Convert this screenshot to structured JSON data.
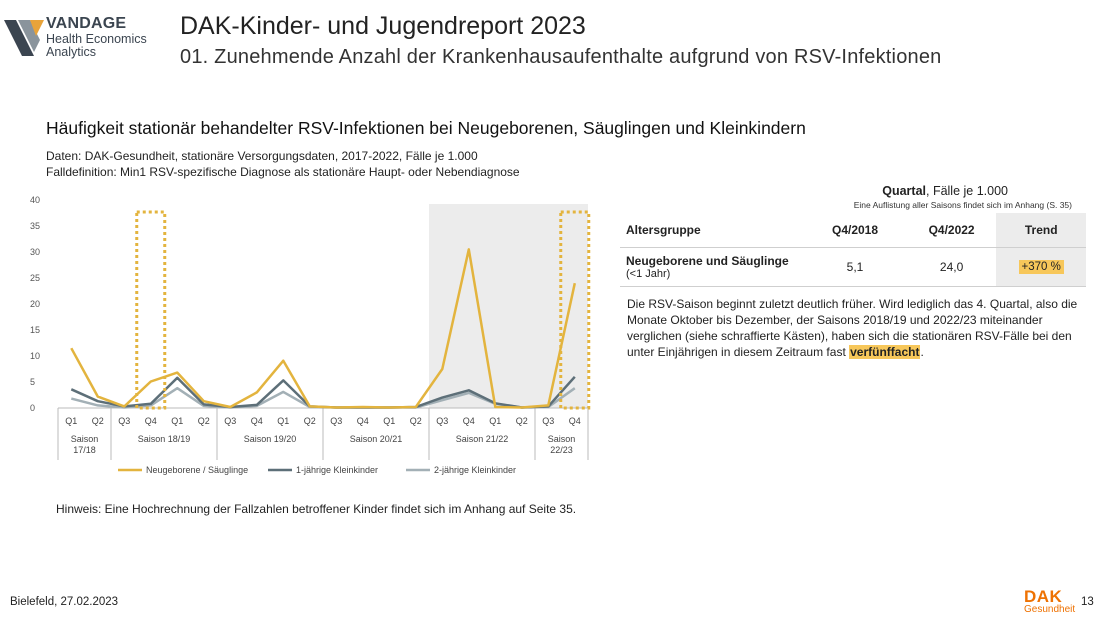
{
  "logo": {
    "brand": "VANDAGE",
    "line1": "Health Economics",
    "line2": "Analytics"
  },
  "header": {
    "title": "DAK-Kinder- und Jugendreport 2023",
    "subtitle": "01. Zunehmende Anzahl der Krankenhausaufenthalte aufgrund von RSV-Infektionen"
  },
  "section": {
    "title": "Häufigkeit stationär behandelter RSV-Infektionen bei Neugeborenen, Säuglingen und Kleinkindern",
    "source": "Daten: DAK-Gesundheit, stationäre Versorgungsdaten, 2017-2022, Fälle je 1.000",
    "definition": "Falldefinition: Min1 RSV-spezifische Diagnose als stationäre Haupt- oder Nebendiagnose"
  },
  "colors": {
    "series_newborn": "#e3b43e",
    "series_1y": "#5d6f78",
    "series_2y": "#a3b0b6",
    "highlight_box": "#e3b43e",
    "shade": "#ececec",
    "trend_fill": "#f7c75a",
    "dak_orange": "#ee7203"
  },
  "chart_data": {
    "type": "line",
    "ylim": [
      0,
      40
    ],
    "yticks": [
      "0",
      "5",
      "10",
      "15",
      "20",
      "25",
      "30",
      "35",
      "40"
    ],
    "categories": [
      "Q1",
      "Q2",
      "Q3",
      "Q4",
      "Q1",
      "Q2",
      "Q3",
      "Q4",
      "Q1",
      "Q2",
      "Q3",
      "Q4",
      "Q1",
      "Q2",
      "Q3",
      "Q4",
      "Q1",
      "Q2",
      "Q3",
      "Q4"
    ],
    "seasons": [
      {
        "label": "Saison 17/18",
        "start": 0,
        "end": 1
      },
      {
        "label": "Saison 18/19",
        "start": 2,
        "end": 5
      },
      {
        "label": "Saison 19/20",
        "start": 6,
        "end": 9
      },
      {
        "label": "Saison 20/21",
        "start": 10,
        "end": 13
      },
      {
        "label": "Saison 21/22",
        "start": 14,
        "end": 17
      },
      {
        "label": "Saison 22/23",
        "start": 18,
        "end": 19
      }
    ],
    "series": [
      {
        "name": "Neugeborene / Säuglinge",
        "color": "#e3b43e",
        "values": [
          11.5,
          2.2,
          0.3,
          5.1,
          6.8,
          1.3,
          0.2,
          3.0,
          9.1,
          0.3,
          0.1,
          0.2,
          0.1,
          0.2,
          7.5,
          30.5,
          0.2,
          0.1,
          0.5,
          24.0
        ]
      },
      {
        "name": "1-jährige Kleinkinder",
        "color": "#5d6f78",
        "values": [
          3.6,
          1.3,
          0.3,
          0.8,
          5.8,
          0.7,
          0.2,
          0.6,
          5.3,
          0.3,
          0.1,
          0.1,
          0.1,
          0.2,
          2.0,
          3.4,
          0.9,
          0.1,
          0.3,
          6.0
        ]
      },
      {
        "name": "2-jährige Kleinkinder",
        "color": "#a3b0b6",
        "values": [
          1.8,
          0.5,
          0.1,
          0.5,
          3.8,
          0.4,
          0.1,
          0.4,
          3.1,
          0.2,
          0.1,
          0.1,
          0.1,
          0.1,
          1.5,
          2.9,
          0.8,
          0.1,
          0.2,
          3.8
        ]
      }
    ],
    "shaded_range": [
      14,
      19
    ],
    "dotted_boxes": [
      3,
      19
    ],
    "grid": false,
    "legend_position": "bottom"
  },
  "quartal_table": {
    "title_bold": "Quartal",
    "title_rest": ", Fälle je 1.000",
    "note": "Eine Auflistung aller Saisons findet sich im Anhang (S. 35)",
    "headers": [
      "Altersgruppe",
      "Q4/2018",
      "Q4/2022",
      "Trend"
    ],
    "row": {
      "group": "Neugeborene und Säuglinge",
      "group_sub": "(<1 Jahr)",
      "q4_2018": "5,1",
      "q4_2022": "24,0",
      "trend": "+370 %"
    }
  },
  "explanation": {
    "line1": "Die RSV-Saison beginnt zuletzt deutlich früher. Wird lediglich das 4. Quartal, also die",
    "line2": "Monate Oktober bis Dezember, der Saisons 2018/19 und 2022/23 miteinander",
    "line3": "verglichen (siehe schraffierte Kästen), haben sich die stationären RSV-Fälle bei den",
    "line4_pre": "unter Einjährigen in diesem Zeitraum fast ",
    "line4_highlight": "verfünffacht",
    "line4_post": "."
  },
  "hint": "Hinweis: Eine Hochrechnung der Fallzahlen betroffener Kinder findet sich im Anhang auf Seite 35.",
  "footer": {
    "location_date": "Bielefeld, 27.02.2023",
    "brand_top": "DAK",
    "brand_bottom": "Gesundheit",
    "page": "13"
  }
}
